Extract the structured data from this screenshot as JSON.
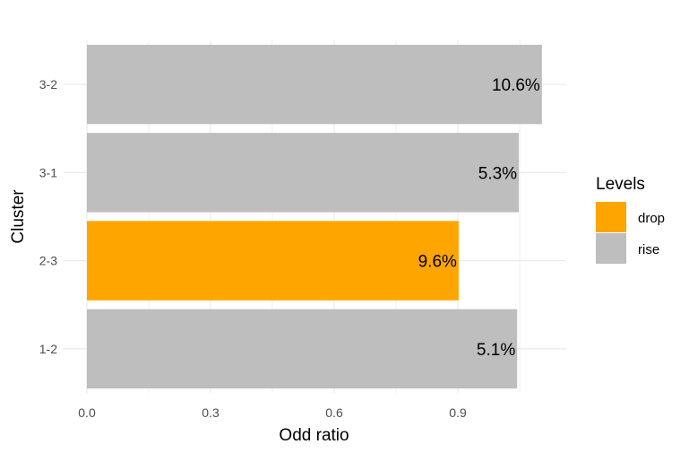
{
  "chart_data": {
    "type": "bar",
    "orientation": "horizontal",
    "categories": [
      "1-2",
      "2-3",
      "3-1",
      "3-2"
    ],
    "values": [
      1.044,
      0.902,
      1.048,
      1.104
    ],
    "labels": [
      "5.1%",
      "9.6%",
      "5.3%",
      "10.6%"
    ],
    "levels": [
      "rise",
      "drop",
      "rise",
      "rise"
    ],
    "xlabel": "Odd ratio",
    "ylabel": "Cluster",
    "xlim": [
      0,
      1.16
    ],
    "xticks": [
      0.0,
      0.3,
      0.6,
      0.9
    ],
    "xtick_labels": [
      "0.0",
      "0.3",
      "0.6",
      "0.9"
    ],
    "grid": true,
    "legend": {
      "title": "Levels",
      "placement": "right",
      "entries": [
        {
          "name": "drop",
          "color": "#FFA500"
        },
        {
          "name": "rise",
          "color": "#BEBEBE"
        }
      ]
    }
  }
}
